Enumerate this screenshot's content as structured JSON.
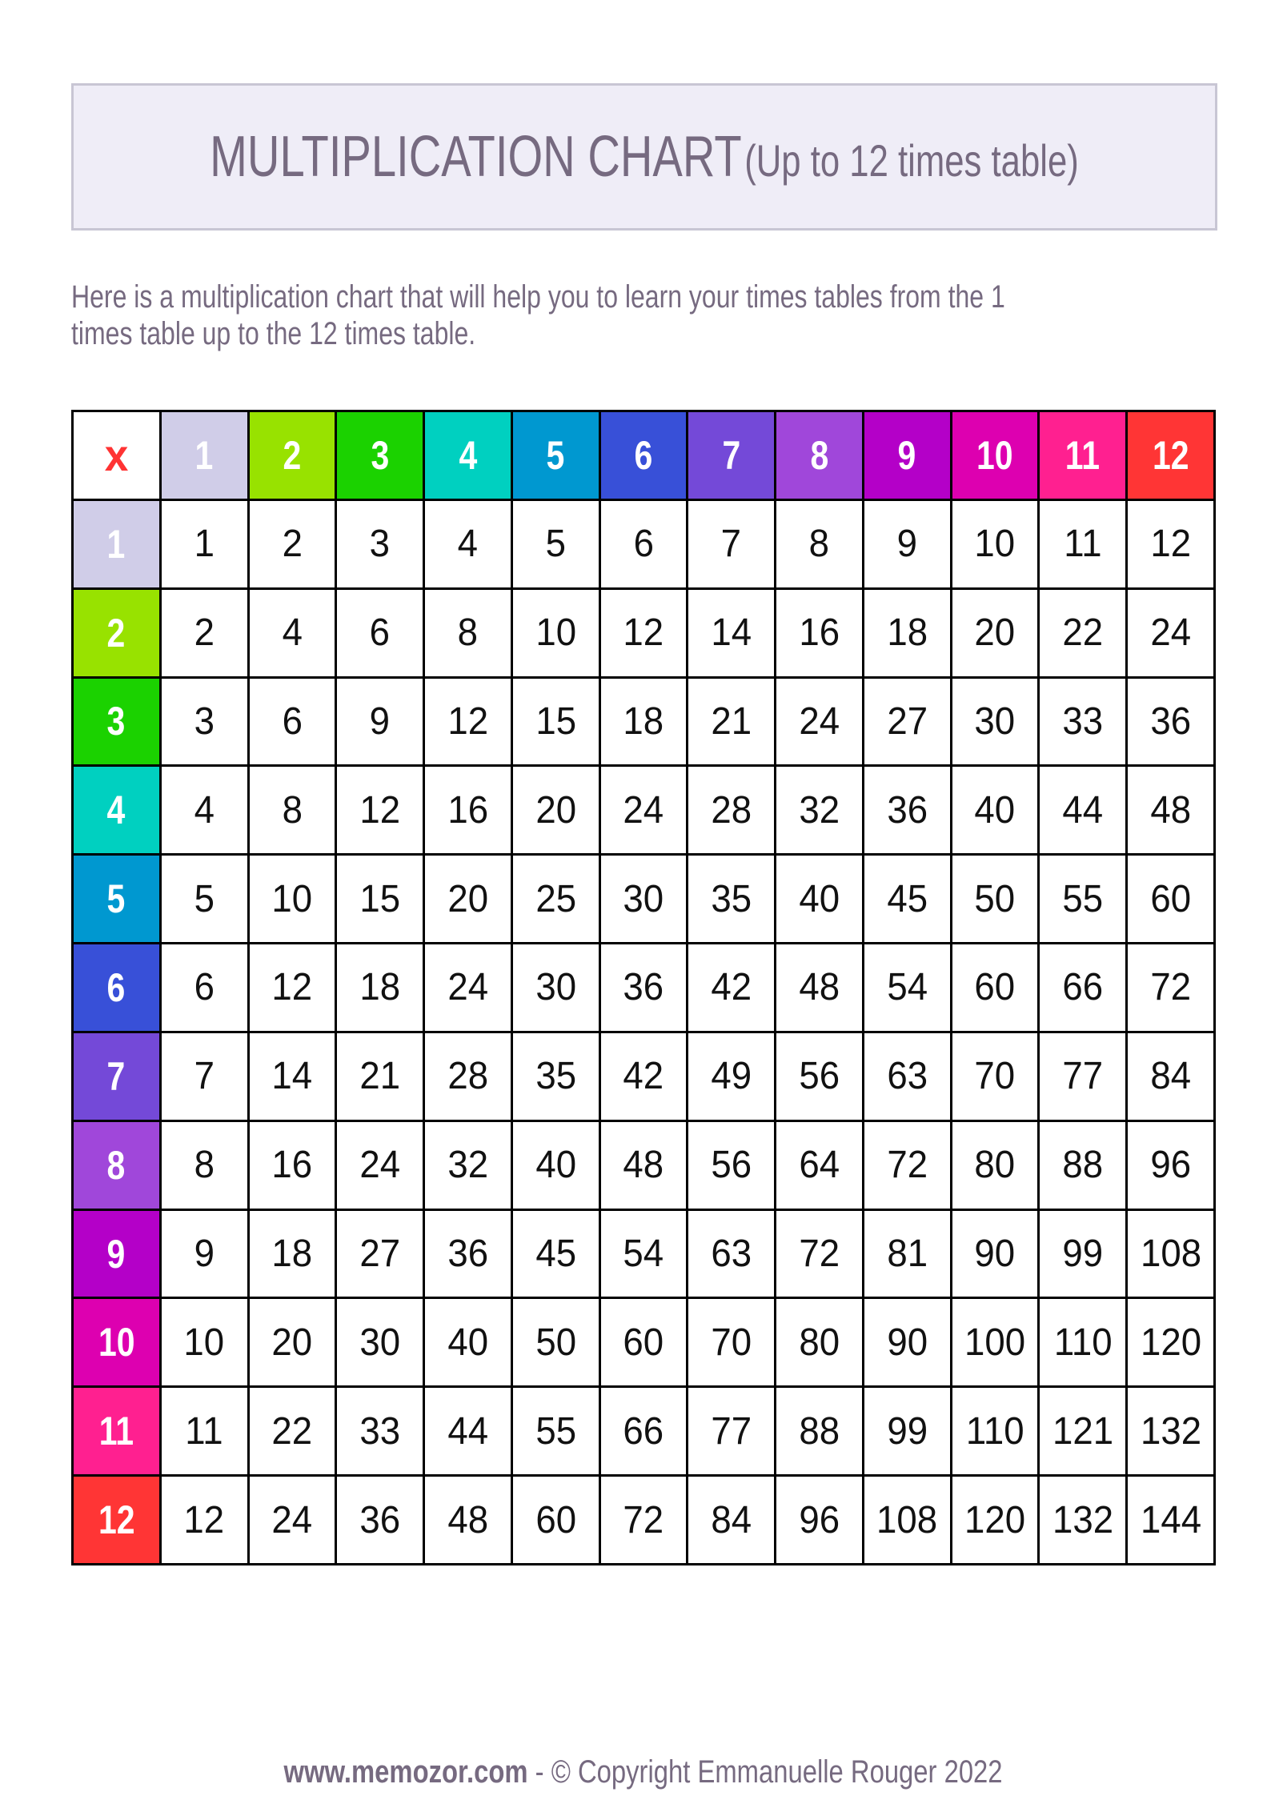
{
  "header": {
    "title": "MULTIPLICATION CHART",
    "subtitle": "(Up to 12 times table)"
  },
  "description": "Here is a multiplication chart that will help you to learn your times tables from the 1 times table up to the 12 times table.",
  "footer": {
    "site": "www.memozor.com",
    "separator": " - ",
    "copyright": "© Copyright Emmanuelle Rouger 2022"
  },
  "chart_data": {
    "type": "table",
    "corner_label": "x",
    "corner_color": "#ff3333",
    "headers": [
      "1",
      "2",
      "3",
      "4",
      "5",
      "6",
      "7",
      "8",
      "9",
      "10",
      "11",
      "12"
    ],
    "header_colors": [
      "#d0cde8",
      "#98e200",
      "#1bd200",
      "#00d0c0",
      "#0098d0",
      "#3850d8",
      "#7449d8",
      "#a047da",
      "#b400c8",
      "#dd00b0",
      "#ff2090",
      "#ff3535"
    ],
    "rows": [
      [
        1,
        2,
        3,
        4,
        5,
        6,
        7,
        8,
        9,
        10,
        11,
        12
      ],
      [
        2,
        4,
        6,
        8,
        10,
        12,
        14,
        16,
        18,
        20,
        22,
        24
      ],
      [
        3,
        6,
        9,
        12,
        15,
        18,
        21,
        24,
        27,
        30,
        33,
        36
      ],
      [
        4,
        8,
        12,
        16,
        20,
        24,
        28,
        32,
        36,
        40,
        44,
        48
      ],
      [
        5,
        10,
        15,
        20,
        25,
        30,
        35,
        40,
        45,
        50,
        55,
        60
      ],
      [
        6,
        12,
        18,
        24,
        30,
        36,
        42,
        48,
        54,
        60,
        66,
        72
      ],
      [
        7,
        14,
        21,
        28,
        35,
        42,
        49,
        56,
        63,
        70,
        77,
        84
      ],
      [
        8,
        16,
        24,
        32,
        40,
        48,
        56,
        64,
        72,
        80,
        88,
        96
      ],
      [
        9,
        18,
        27,
        36,
        45,
        54,
        63,
        72,
        81,
        90,
        99,
        108
      ],
      [
        10,
        20,
        30,
        40,
        50,
        60,
        70,
        80,
        90,
        100,
        110,
        120
      ],
      [
        11,
        22,
        33,
        44,
        55,
        66,
        77,
        88,
        99,
        110,
        121,
        132
      ],
      [
        12,
        24,
        36,
        48,
        60,
        72,
        84,
        96,
        108,
        120,
        132,
        144
      ]
    ]
  }
}
